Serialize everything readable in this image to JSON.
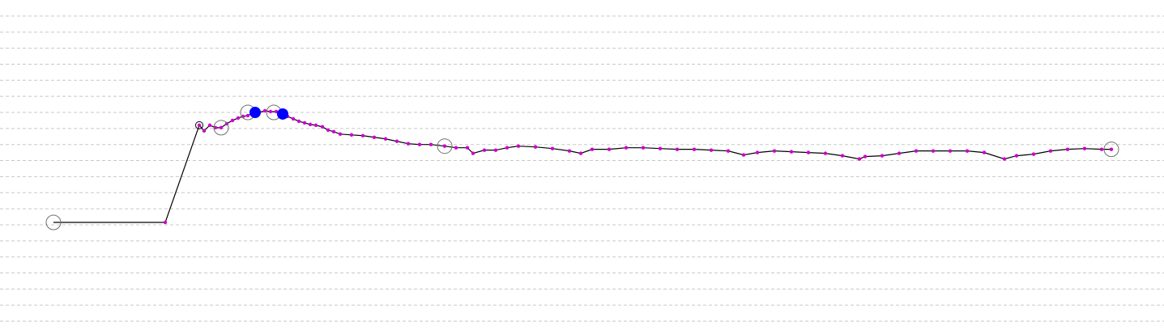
{
  "chart_data": {
    "type": "line",
    "xlim": [
      -6.6,
      137.1
    ],
    "ylim": [
      -0.8,
      20.0
    ],
    "yticks": [
      0,
      1,
      2,
      3,
      4,
      5,
      6,
      7,
      8,
      9,
      10,
      11,
      12,
      13,
      14,
      15,
      16,
      17,
      18,
      19
    ],
    "grid": true,
    "series": [
      {
        "color": "#000000",
        "marker_color": "#cc00cc",
        "x": [
          0,
          13.8,
          18.0,
          18.6,
          19.3,
          20.0,
          20.7,
          21.4,
          22.1,
          22.8,
          23.4,
          24.0,
          24.7,
          25.4,
          26.1,
          26.8,
          27.5,
          28.2,
          28.9,
          29.6,
          30.3,
          31.0,
          31.7,
          32.4,
          33.2,
          33.9,
          34.6,
          35.4,
          36.8,
          38.2,
          39.6,
          41.0,
          42.4,
          43.8,
          45.2,
          46.6,
          48.3,
          49.7,
          51.1,
          51.8,
          53.2,
          54.6,
          56.0,
          57.4,
          59.5,
          61.6,
          63.7,
          65.1,
          66.5,
          68.6,
          70.7,
          72.8,
          74.9,
          77.0,
          79.1,
          81.2,
          83.3,
          85.2,
          86.9,
          89.0,
          91.1,
          93.2,
          95.3,
          97.4,
          99.5,
          100.2,
          102.3,
          104.4,
          106.5,
          108.6,
          110.7,
          112.8,
          114.9,
          117.4,
          118.9,
          121.0,
          123.1,
          125.2,
          127.3,
          129.4,
          130.6
        ],
        "values": [
          6.15,
          6.15,
          12.2,
          11.85,
          12.2,
          12.05,
          12.05,
          12.3,
          12.5,
          12.65,
          12.75,
          12.8,
          13.0,
          13.0,
          13.1,
          13.05,
          13.05,
          12.9,
          12.75,
          12.6,
          12.45,
          12.35,
          12.25,
          12.2,
          12.1,
          11.9,
          11.8,
          11.65,
          11.6,
          11.55,
          11.45,
          11.35,
          11.2,
          11.05,
          11.0,
          11.0,
          10.9,
          10.8,
          10.8,
          10.45,
          10.65,
          10.65,
          10.8,
          10.9,
          10.85,
          10.75,
          10.6,
          10.45,
          10.7,
          10.7,
          10.8,
          10.8,
          10.75,
          10.7,
          10.7,
          10.65,
          10.6,
          10.35,
          10.5,
          10.6,
          10.55,
          10.5,
          10.45,
          10.3,
          10.1,
          10.25,
          10.3,
          10.45,
          10.6,
          10.6,
          10.6,
          10.6,
          10.5,
          10.1,
          10.3,
          10.4,
          10.6,
          10.7,
          10.75,
          10.7,
          10.7
        ]
      }
    ],
    "open_markers": {
      "color": "#707070",
      "x": [
        0,
        20.7,
        24.0,
        27.2,
        48.3,
        130.6
      ],
      "values": [
        6.15,
        12.05,
        13.0,
        13.0,
        10.9,
        10.7
      ]
    },
    "small_markers": {
      "color": "#000000",
      "x": [
        18.0
      ],
      "values": [
        12.2
      ]
    },
    "filled_markers": {
      "color": "#0000ff",
      "x": [
        24.9,
        28.3
      ],
      "values": [
        13.0,
        12.9
      ]
    }
  }
}
